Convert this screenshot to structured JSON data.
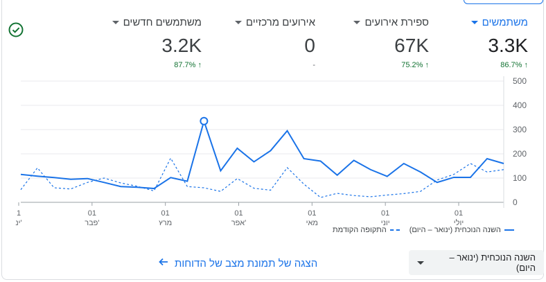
{
  "metrics": [
    {
      "label": "משתמשים",
      "value": "3.3K",
      "delta": "86.7%",
      "delta_dir": "up",
      "active": true
    },
    {
      "label": "ספירת אירועים",
      "value": "67K",
      "delta": "75.2%",
      "delta_dir": "up",
      "active": false
    },
    {
      "label": "אירועים מרכזיים",
      "value": "0",
      "delta": "-",
      "delta_dir": "none",
      "active": false
    },
    {
      "label": "משתמשים חדשים",
      "value": "3.2K",
      "delta": "87.7%",
      "delta_dir": "up",
      "active": false
    }
  ],
  "legend": {
    "current": "השנה הנוכחית (ינואר – היום)",
    "previous": "התקופה הקודמת"
  },
  "range_select": {
    "label": "השנה הנוכחית (ינואר – היום)"
  },
  "link": {
    "label": "הצגה של תמונת מצב של הדוחות"
  },
  "colors": {
    "accent": "#1a73e8",
    "positive": "#137333"
  },
  "chart_data": {
    "type": "line",
    "y_ticks": [
      "500",
      "400",
      "300",
      "200",
      "100",
      "0"
    ],
    "ylim": [
      0,
      500
    ],
    "x_tick_labels": [
      {
        "day": "1",
        "month": "ינ'"
      },
      {
        "day": "01",
        "month": "פבר'"
      },
      {
        "day": "01",
        "month": "מרץ"
      },
      {
        "day": "01",
        "month": "אפר'"
      },
      {
        "day": "01",
        "month": "מאי"
      },
      {
        "day": "01",
        "month": "יוני"
      },
      {
        "day": "01",
        "month": "יולי"
      }
    ],
    "series": [
      {
        "name": "השנה הנוכחית (ינואר – היום)",
        "style": "solid",
        "values": [
          [
            0,
            115
          ],
          [
            1,
            108
          ],
          [
            2,
            102
          ],
          [
            3,
            95
          ],
          [
            4,
            98
          ],
          [
            5,
            82
          ],
          [
            6,
            65
          ],
          [
            7,
            62
          ],
          [
            8,
            57
          ],
          [
            9,
            102
          ],
          [
            10,
            87
          ],
          [
            11,
            335
          ],
          [
            12,
            130
          ],
          [
            13,
            223
          ],
          [
            14,
            167
          ],
          [
            15,
            213
          ],
          [
            16,
            295
          ],
          [
            17,
            180
          ],
          [
            18,
            170
          ],
          [
            19,
            112
          ],
          [
            20,
            173
          ],
          [
            21,
            135
          ],
          [
            22,
            107
          ],
          [
            23,
            160
          ],
          [
            24,
            125
          ],
          [
            25,
            82
          ],
          [
            26,
            103
          ],
          [
            27,
            103
          ],
          [
            28,
            180
          ],
          [
            29,
            160
          ]
        ],
        "highlight_index": 11
      },
      {
        "name": "התקופה הקודמת",
        "style": "dashed",
        "values": [
          [
            0,
            52
          ],
          [
            1,
            142
          ],
          [
            2,
            60
          ],
          [
            3,
            55
          ],
          [
            4,
            82
          ],
          [
            5,
            100
          ],
          [
            6,
            80
          ],
          [
            7,
            66
          ],
          [
            8,
            47
          ],
          [
            9,
            182
          ],
          [
            10,
            65
          ],
          [
            11,
            60
          ],
          [
            12,
            45
          ],
          [
            13,
            98
          ],
          [
            14,
            58
          ],
          [
            15,
            50
          ],
          [
            16,
            143
          ],
          [
            17,
            75
          ],
          [
            18,
            20
          ],
          [
            19,
            37
          ],
          [
            20,
            28
          ],
          [
            21,
            23
          ],
          [
            22,
            30
          ],
          [
            23,
            36
          ],
          [
            24,
            45
          ],
          [
            25,
            92
          ],
          [
            26,
            115
          ],
          [
            27,
            160
          ],
          [
            28,
            125
          ],
          [
            29,
            135
          ]
        ]
      }
    ]
  }
}
